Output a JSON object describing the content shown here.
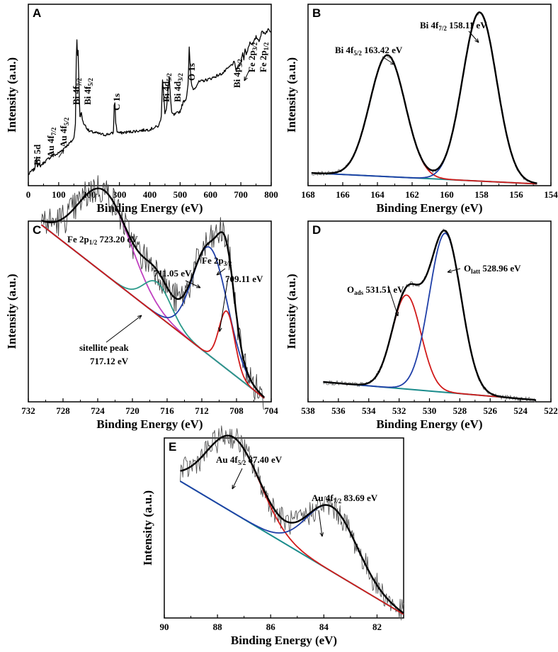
{
  "chart_data": [
    {
      "panel": "A",
      "type": "line",
      "xlabel": "Binding Energy (eV)",
      "ylabel": "Intensity (a.u.)",
      "xlim": [
        0,
        800
      ],
      "x_reversed": false,
      "xticks": [
        0,
        100,
        200,
        300,
        400,
        500,
        600,
        700,
        800
      ],
      "series": [
        {
          "name": "survey",
          "color": "#000000",
          "x": [
            0,
            10,
            20,
            24,
            27,
            30,
            40,
            60,
            75,
            80,
            90,
            100,
            120,
            140,
            150,
            155,
            158,
            160,
            162,
            164,
            166,
            170,
            175,
            180,
            200,
            250,
            280,
            283,
            285,
            288,
            292,
            300,
            350,
            400,
            430,
            438,
            442,
            446,
            450,
            455,
            460,
            464,
            468,
            472,
            480,
            500,
            510,
            520,
            526,
            530,
            534,
            538,
            545,
            560,
            600,
            640,
            660,
            672,
            678,
            684,
            690,
            700,
            706,
            710,
            714,
            718,
            724,
            730,
            740,
            750,
            760,
            770,
            780,
            790,
            800
          ],
          "y": [
            6,
            8,
            9,
            12,
            16,
            11,
            11,
            14,
            16,
            17,
            17,
            18,
            21,
            24,
            26,
            34,
            70,
            80,
            72,
            75,
            60,
            38,
            40,
            35,
            30,
            28,
            29,
            44,
            46,
            35,
            30,
            29,
            30,
            31,
            33,
            38,
            59,
            50,
            40,
            42,
            52,
            60,
            49,
            40,
            39,
            41,
            46,
            48,
            56,
            76,
            62,
            55,
            53,
            57,
            59,
            62,
            65,
            67,
            68,
            64,
            65,
            68,
            74,
            69,
            76,
            72,
            76,
            79,
            78,
            82,
            80,
            85,
            84,
            86,
            85
          ]
        }
      ],
      "annotations": [
        "Bi 5d",
        "Au 4f7/2",
        "Au 4f5/2",
        "Bi 4f7/2",
        "Bi 4f5/2",
        "C 1s",
        "Bi 4d5/2",
        "Bi 4d3/2",
        "O 1s",
        "Bi 4p3/2",
        "Fe 2p3/2",
        "Fe 2p1/2"
      ]
    },
    {
      "panel": "B",
      "type": "line",
      "xlabel": "Binding Energy (eV)",
      "ylabel": "Intensity (a.u.)",
      "xlim": [
        168,
        154
      ],
      "x_reversed": true,
      "xticks": [
        168,
        166,
        164,
        162,
        160,
        158,
        156,
        154
      ],
      "series": [
        {
          "name": "raw",
          "color": "#7a7a7a",
          "x": [
            167.8,
            154.8
          ],
          "y": [
            7,
            1
          ]
        },
        {
          "name": "background",
          "color": "#1a8c8c",
          "x": [
            167.8,
            154.8
          ],
          "y": [
            7,
            1
          ]
        },
        {
          "name": "Bi 4f5/2",
          "color": "#d11a1a",
          "center": 163.42,
          "amplitude": 67,
          "width": 1.02
        },
        {
          "name": "Bi 4f7/2",
          "color": "#1f3fa8",
          "center": 158.11,
          "amplitude": 93,
          "width": 0.98
        },
        {
          "name": "envelope",
          "color": "#000000",
          "x": [
            167.8,
            154.8
          ],
          "y": [
            7,
            1
          ]
        }
      ],
      "annotations": [
        "Bi 4f5/2 163.42 eV",
        "Bi 4f7/2 158.11 eV"
      ]
    },
    {
      "panel": "C",
      "type": "line",
      "xlabel": "Binding Energy (eV)",
      "ylabel": "Intensity (a.u.)",
      "xlim": [
        732,
        704
      ],
      "x_reversed": true,
      "xticks": [
        732,
        728,
        724,
        720,
        716,
        712,
        708,
        704
      ],
      "series": [
        {
          "name": "raw",
          "color": "#3c3c3c",
          "x": [
            730.5,
            704.8
          ],
          "y": [
            98,
            2
          ]
        },
        {
          "name": "background",
          "color": "#1a8c8c",
          "x": [
            730.5,
            704.8
          ],
          "y": [
            98,
            2
          ]
        },
        {
          "name": "Fe 2p1/2",
          "color": "#c040c0",
          "center": 723.2,
          "amplitude": 46,
          "width": 3.0
        },
        {
          "name": "sitellite peak",
          "color": "#2a9a8a",
          "center": 717.12,
          "amplitude": 18,
          "width": 1.6
        },
        {
          "name": "Fe 2p3/2 711.05",
          "color": "#1f3fa8",
          "center": 711.05,
          "amplitude": 60,
          "width": 2.0
        },
        {
          "name": "Fe 2p3/2 709.11",
          "color": "#d11a1a",
          "center": 709.11,
          "amplitude": 32,
          "width": 0.9
        },
        {
          "name": "envelope",
          "color": "#000000",
          "x": [
            730.5,
            704.8
          ],
          "y": [
            98,
            2
          ]
        }
      ],
      "annotations": [
        "Fe 2p1/2 723.20 eV",
        "Fe 2p3/2",
        "711.05 eV",
        "709.11 eV",
        "sitellite peak",
        "717.12 eV"
      ]
    },
    {
      "panel": "D",
      "type": "line",
      "xlabel": "Binding Energy (eV)",
      "ylabel": "Intensity (a.u.)",
      "xlim": [
        538,
        522
      ],
      "x_reversed": true,
      "xticks": [
        538,
        536,
        534,
        532,
        530,
        528,
        526,
        524,
        522
      ],
      "series": [
        {
          "name": "raw",
          "color": "#7a7a7a",
          "x": [
            537.0,
            523.0
          ],
          "y": [
            11,
            1
          ]
        },
        {
          "name": "background",
          "color": "#1a8c8c",
          "x": [
            537.0,
            523.0
          ],
          "y": [
            11,
            1
          ]
        },
        {
          "name": "O ads",
          "color": "#d11a1a",
          "center": 531.51,
          "amplitude": 52,
          "width": 0.95
        },
        {
          "name": "O latt",
          "color": "#1f3fa8",
          "center": 528.96,
          "amplitude": 88,
          "width": 1.05
        },
        {
          "name": "envelope",
          "color": "#000000",
          "x": [
            537.0,
            523.0
          ],
          "y": [
            11,
            1
          ]
        }
      ],
      "annotations": [
        "Oads 531.51 eV",
        "Olatt 528.96 eV"
      ]
    },
    {
      "panel": "E",
      "type": "line",
      "xlabel": "Binding Energy (eV)",
      "ylabel": "Intensity (a.u.)",
      "xlim": [
        90,
        81
      ],
      "x_reversed": true,
      "xticks": [
        90,
        88,
        86,
        84,
        82
      ],
      "series": [
        {
          "name": "raw",
          "color": "#555555",
          "x": [
            89.4,
            81.0
          ],
          "y": [
            76,
            2
          ]
        },
        {
          "name": "background",
          "color": "#1a8c8c",
          "x": [
            89.4,
            81.0
          ],
          "y": [
            76,
            2
          ]
        },
        {
          "name": "Au 4f5/2",
          "color": "#d11a1a",
          "center": 87.4,
          "amplitude": 42,
          "width": 1.0
        },
        {
          "name": "Au 4f7/2",
          "color": "#1f3fa8",
          "center": 83.69,
          "amplitude": 36,
          "width": 0.95
        },
        {
          "name": "envelope",
          "color": "#000000",
          "x": [
            89.4,
            81.0
          ],
          "y": [
            76,
            2
          ]
        }
      ],
      "annotations": [
        "Au 4f5/2 87.40 eV",
        "Au 4f7/2 83.69 eV"
      ]
    }
  ]
}
